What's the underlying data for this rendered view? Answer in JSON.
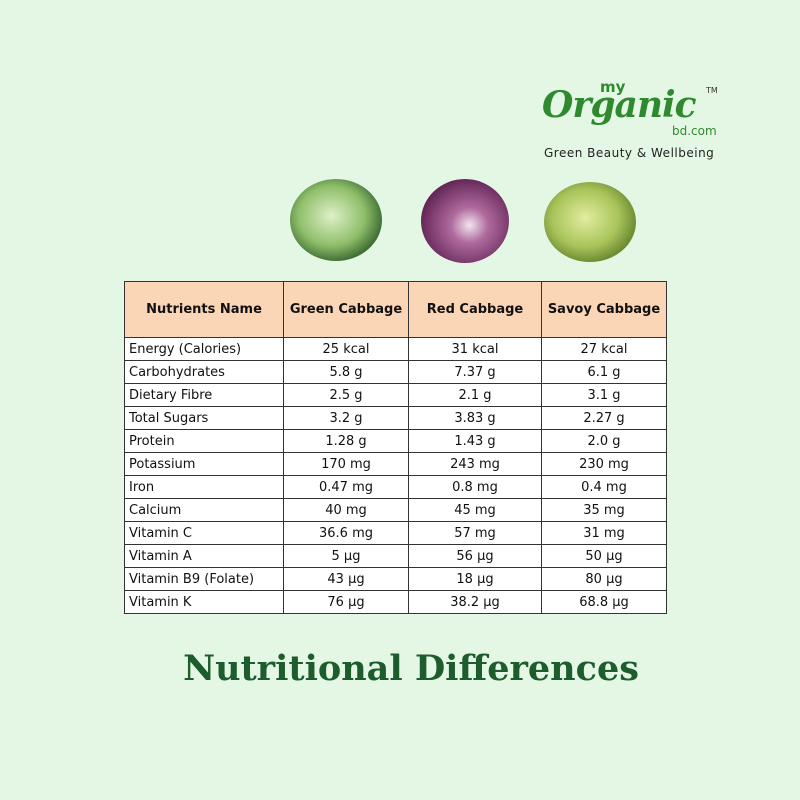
{
  "logo": {
    "prefix": "my",
    "brand": "Organic",
    "trademark": "TM",
    "domain": "bd.com",
    "tagline": "Green Beauty & Wellbeing"
  },
  "table": {
    "header": [
      "Nutrients Name",
      "Green Cabbage",
      "Red Cabbage",
      "Savoy Cabbage"
    ],
    "rows": [
      [
        "Energy (Calories)",
        "25 kcal",
        "31 kcal",
        "27 kcal"
      ],
      [
        "Carbohydrates",
        "5.8 g",
        "7.37 g",
        "6.1 g"
      ],
      [
        "Dietary Fibre",
        "2.5 g",
        "2.1 g",
        "3.1 g"
      ],
      [
        "Total Sugars",
        "3.2 g",
        "3.83 g",
        "2.27 g"
      ],
      [
        "Protein",
        "1.28 g",
        "1.43 g",
        "2.0 g"
      ],
      [
        "Potassium",
        "170 mg",
        "243 mg",
        "230 mg"
      ],
      [
        "Iron",
        "0.47 mg",
        "0.8 mg",
        "0.4 mg"
      ],
      [
        "Calcium",
        "40 mg",
        "45 mg",
        "35 mg"
      ],
      [
        "Vitamin C",
        "36.6 mg",
        "57 mg",
        "31 mg"
      ],
      [
        "Vitamin A",
        "5 µg",
        "56 µg",
        "50 µg"
      ],
      [
        "Vitamin B9 (Folate)",
        "43 µg",
        "18 µg",
        "80 µg"
      ],
      [
        "Vitamin K",
        "76 µg",
        "38.2 µg",
        "68.8 µg"
      ]
    ]
  },
  "title": "Nutritional Differences"
}
